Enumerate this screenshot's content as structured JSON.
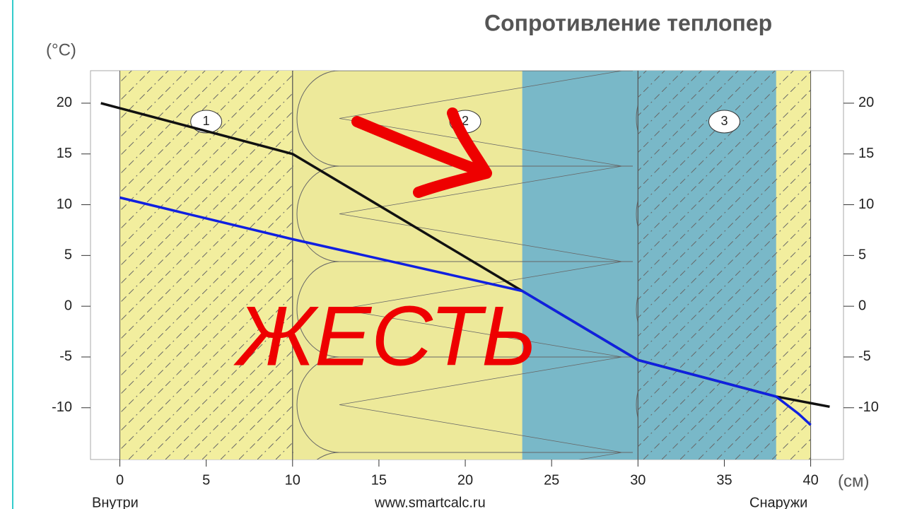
{
  "chart_data": {
    "type": "line",
    "title": "Сопротивление теплопер",
    "y_label": "(°C)",
    "x_label": "(см)",
    "inside_label": "Внутри",
    "source": "www.smartcalc.ru",
    "outside_label": "Снаружи",
    "annotation": "ЖЕСТЬ",
    "xlim": [
      -1.7,
      41.9
    ],
    "ylim": [
      -15.1,
      23.2
    ],
    "xticks": [
      0,
      5,
      10,
      15,
      20,
      25,
      30,
      35,
      40
    ],
    "yticks": [
      20,
      15,
      10,
      5,
      0,
      -5,
      -10
    ],
    "layers": [
      {
        "label": "1",
        "range": [
          0,
          10
        ],
        "color": "#f2ee9e"
      },
      {
        "label": "2",
        "range": [
          10,
          30
        ],
        "color": "#ede99a"
      },
      {
        "label": "3",
        "range": [
          30,
          40
        ],
        "color": "#f2ee9e"
      }
    ],
    "zone": {
      "range": [
        23.3,
        38
      ],
      "color": "#79b8c8"
    },
    "series": [
      {
        "color": "#111111",
        "x": [
          -1.1,
          10,
          23.3,
          30,
          38,
          41.1
        ],
        "values": [
          20,
          15,
          1.5,
          -5.3,
          -8.9,
          -9.9
        ]
      },
      {
        "color": "#1020e0",
        "x": [
          0,
          10,
          23.3,
          30,
          38,
          39.3,
          40
        ],
        "values": [
          10.7,
          6.6,
          1.5,
          -5.3,
          -8.9,
          -10.6,
          -11.7
        ]
      }
    ]
  }
}
